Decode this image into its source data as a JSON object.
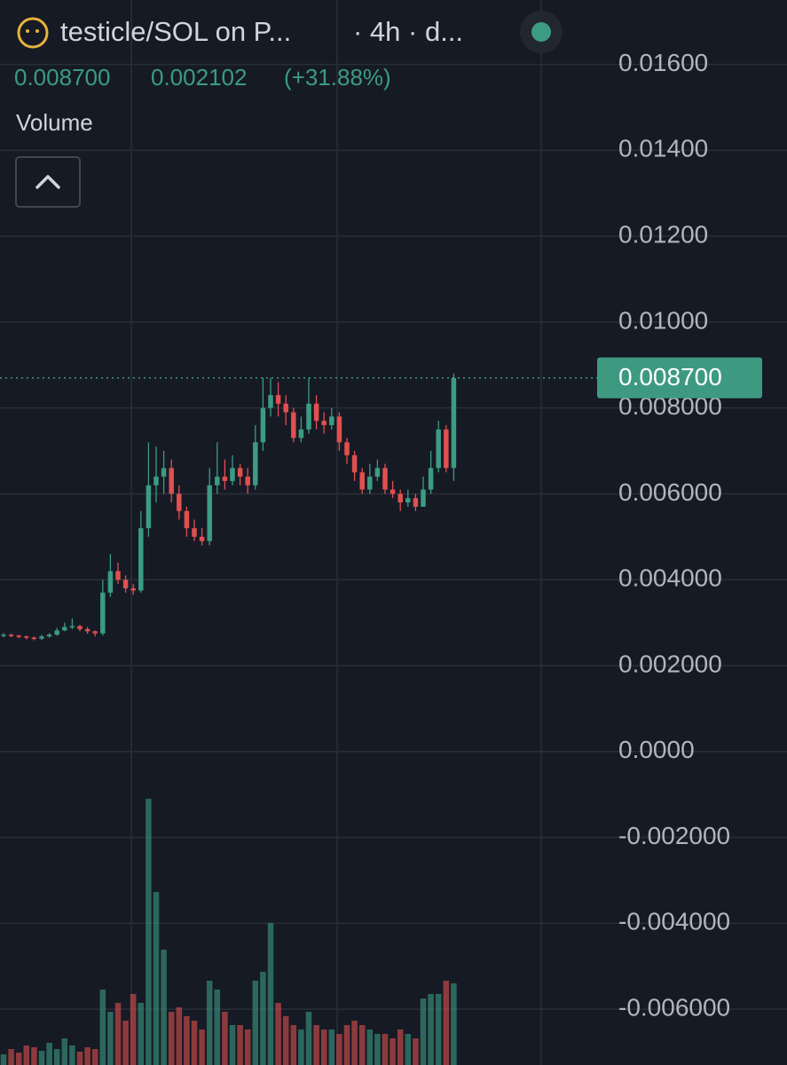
{
  "header": {
    "title": "testicle/SOL on P...",
    "interval": "· 4h · d...",
    "price": "0.008700",
    "change": "0.002102",
    "change_pct": "(+31.88%)",
    "volume_label": "Volume"
  },
  "chart_data": {
    "type": "candlestick",
    "open": [
      0.0027,
      0.00272,
      0.0027,
      0.00268,
      0.00265,
      0.00263,
      0.00268,
      0.00272,
      0.00282,
      0.0029,
      0.00292,
      0.00285,
      0.0028,
      0.00275,
      0.0037,
      0.0042,
      0.004,
      0.0038,
      0.00375,
      0.0052,
      0.0062,
      0.0064,
      0.0066,
      0.006,
      0.0056,
      0.0052,
      0.005,
      0.0049,
      0.0062,
      0.0064,
      0.0063,
      0.0066,
      0.0064,
      0.0062,
      0.0072,
      0.008,
      0.0083,
      0.0081,
      0.0079,
      0.0073,
      0.0075,
      0.0081,
      0.0077,
      0.0076,
      0.0078,
      0.0072,
      0.0069,
      0.0065,
      0.0061,
      0.0064,
      0.0066,
      0.0061,
      0.006,
      0.0058,
      0.0059,
      0.0057,
      0.0061,
      0.0066,
      0.0075,
      0.0066
    ],
    "high": [
      0.00276,
      0.00275,
      0.00272,
      0.0027,
      0.00268,
      0.00272,
      0.00276,
      0.00288,
      0.003,
      0.0031,
      0.00295,
      0.0029,
      0.00282,
      0.004,
      0.0046,
      0.0044,
      0.0041,
      0.0039,
      0.0056,
      0.0072,
      0.0071,
      0.007,
      0.0068,
      0.0062,
      0.0057,
      0.0054,
      0.0052,
      0.0066,
      0.0072,
      0.0068,
      0.0069,
      0.0067,
      0.0066,
      0.0076,
      0.0087,
      0.0087,
      0.0086,
      0.0083,
      0.008,
      0.0078,
      0.0087,
      0.0083,
      0.0079,
      0.008,
      0.0079,
      0.0073,
      0.007,
      0.0066,
      0.0067,
      0.0068,
      0.0067,
      0.0063,
      0.0061,
      0.0061,
      0.006,
      0.0064,
      0.007,
      0.0077,
      0.0076,
      0.0088
    ],
    "low": [
      0.00266,
      0.00266,
      0.00264,
      0.00261,
      0.00259,
      0.0026,
      0.00265,
      0.0027,
      0.0028,
      0.00285,
      0.0028,
      0.00274,
      0.00268,
      0.0027,
      0.0036,
      0.0039,
      0.0037,
      0.00365,
      0.0037,
      0.005,
      0.0058,
      0.006,
      0.0058,
      0.0054,
      0.005,
      0.0049,
      0.0048,
      0.0048,
      0.006,
      0.0061,
      0.0062,
      0.0062,
      0.006,
      0.0061,
      0.007,
      0.0078,
      0.0078,
      0.0076,
      0.0072,
      0.0072,
      0.0074,
      0.0075,
      0.0074,
      0.0075,
      0.007,
      0.0067,
      0.0063,
      0.006,
      0.006,
      0.0063,
      0.006,
      0.0059,
      0.0056,
      0.0057,
      0.0056,
      0.0057,
      0.006,
      0.0065,
      0.0065,
      0.0063
    ],
    "close": [
      0.00272,
      0.0027,
      0.00268,
      0.00265,
      0.00263,
      0.00268,
      0.00272,
      0.00282,
      0.0029,
      0.00292,
      0.00285,
      0.0028,
      0.00275,
      0.0037,
      0.0042,
      0.004,
      0.0038,
      0.00375,
      0.0052,
      0.0062,
      0.0064,
      0.0066,
      0.006,
      0.0056,
      0.0052,
      0.005,
      0.0049,
      0.0062,
      0.0064,
      0.0063,
      0.0066,
      0.0064,
      0.0062,
      0.0072,
      0.008,
      0.0083,
      0.0081,
      0.0079,
      0.0073,
      0.0075,
      0.0081,
      0.0077,
      0.0076,
      0.0078,
      0.0072,
      0.0069,
      0.0065,
      0.0061,
      0.0064,
      0.0066,
      0.0061,
      0.006,
      0.0058,
      0.0059,
      0.0057,
      0.0061,
      0.0066,
      0.0075,
      0.0066,
      0.0087
    ],
    "volume": [
      12,
      18,
      14,
      22,
      20,
      16,
      25,
      18,
      30,
      22,
      15,
      20,
      18,
      85,
      60,
      70,
      50,
      80,
      70,
      300,
      195,
      130,
      60,
      65,
      55,
      50,
      40,
      95,
      85,
      60,
      45,
      45,
      40,
      95,
      105,
      160,
      70,
      55,
      45,
      40,
      60,
      45,
      40,
      40,
      35,
      45,
      50,
      45,
      40,
      35,
      35,
      30,
      40,
      35,
      30,
      75,
      80,
      80,
      95,
      92
    ],
    "up_color": "#3b9b83",
    "down_color": "#e0504f",
    "ylim": [
      -0.0073,
      0.0175
    ],
    "yticks": [
      {
        "value": 0.016,
        "label": "0.01600"
      },
      {
        "value": 0.014,
        "label": "0.01400"
      },
      {
        "value": 0.012,
        "label": "0.01200"
      },
      {
        "value": 0.01,
        "label": "0.01000"
      },
      {
        "value": 0.008,
        "label": "0.008000"
      },
      {
        "value": 0.006,
        "label": "0.006000"
      },
      {
        "value": 0.004,
        "label": "0.004000"
      },
      {
        "value": 0.002,
        "label": "0.002000"
      },
      {
        "value": 0,
        "label": "0.0000"
      },
      {
        "value": -0.002,
        "label": "-0.002000"
      },
      {
        "value": -0.004,
        "label": "-0.004000"
      },
      {
        "value": -0.006,
        "label": "-0.006000"
      }
    ],
    "last_price": {
      "value": 0.0087,
      "label": "0.008700"
    },
    "grid": true
  }
}
